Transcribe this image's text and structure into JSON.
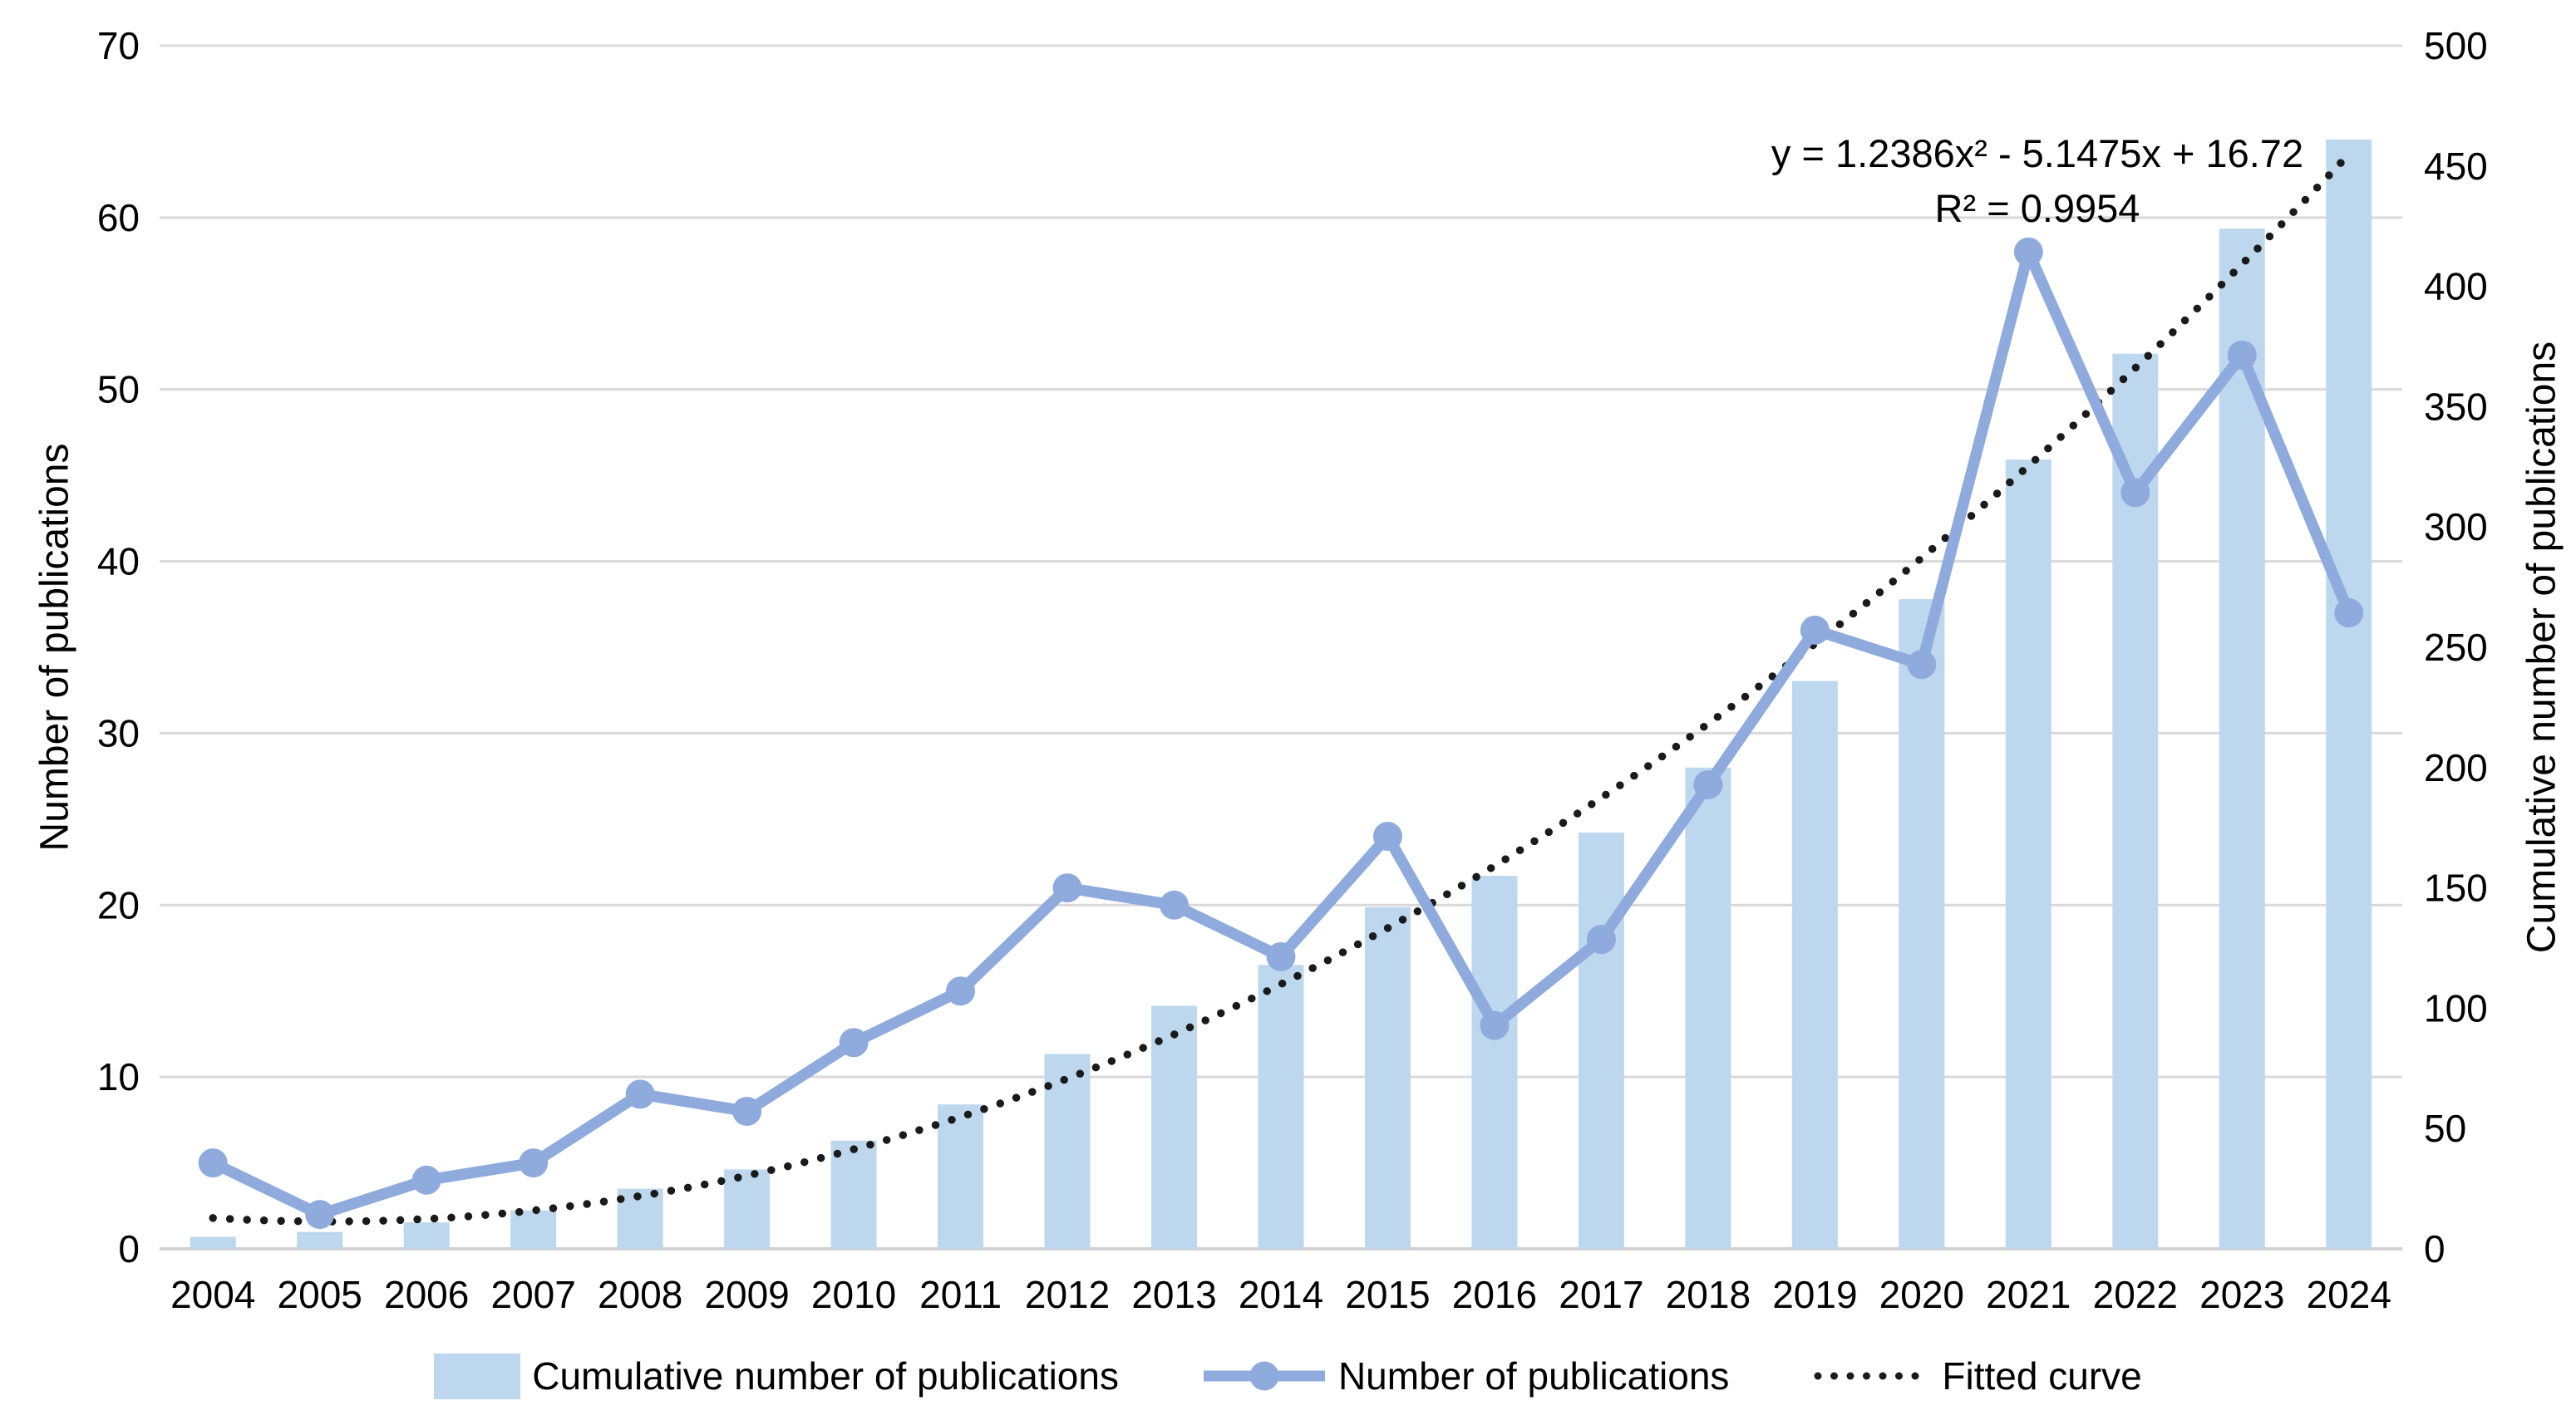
{
  "figure": {
    "equation_line1": "y = 1.2386x² - 5.1475x + 16.72",
    "equation_line2": "R² = 0.9954"
  },
  "left_axis": {
    "title": "Number of publications",
    "min": 0,
    "max": 70,
    "step": 10
  },
  "right_axis": {
    "title": "Cumulative number of publications",
    "min": 0,
    "max": 500,
    "step": 50
  },
  "colors": {
    "bar": "#BDD7EE",
    "line": "#8FAADC",
    "fitted": "#1a1a1a",
    "grid": "#D9D9D9",
    "axisline": "#D2D2D2",
    "text": "#000000"
  },
  "chart_data": {
    "type": "bar",
    "subtype": "combo-bar-line-with-trendline",
    "categories": [
      "2004",
      "2005",
      "2006",
      "2007",
      "2008",
      "2009",
      "2010",
      "2011",
      "2012",
      "2013",
      "2014",
      "2015",
      "2016",
      "2017",
      "2018",
      "2019",
      "2020",
      "2021",
      "2022",
      "2023",
      "2024"
    ],
    "series": [
      {
        "name": "Cumulative number of publications",
        "type": "bar",
        "axis": "right",
        "values": [
          5,
          7,
          11,
          16,
          25,
          33,
          45,
          60,
          81,
          101,
          118,
          142,
          155,
          173,
          200,
          236,
          270,
          328,
          372,
          424,
          461
        ]
      },
      {
        "name": "Number of publications",
        "type": "line",
        "axis": "left",
        "values": [
          5,
          2,
          4,
          5,
          9,
          8,
          12,
          15,
          21,
          20,
          17,
          24,
          13,
          18,
          27,
          36,
          34,
          58,
          44,
          52,
          37
        ]
      },
      {
        "name": "Fitted curve",
        "type": "dotted",
        "axis": "right",
        "fit": {
          "a": 1.2386,
          "b": -5.1475,
          "c": 16.72
        },
        "r_squared": 0.9954
      }
    ],
    "title": "",
    "xlabel": "",
    "ylabel_left": "Number of publications",
    "ylabel_right": "Cumulative number of publications",
    "left_ylim": [
      0,
      70
    ],
    "right_ylim": [
      0,
      500
    ],
    "grid": true,
    "legend_position": "bottom"
  }
}
